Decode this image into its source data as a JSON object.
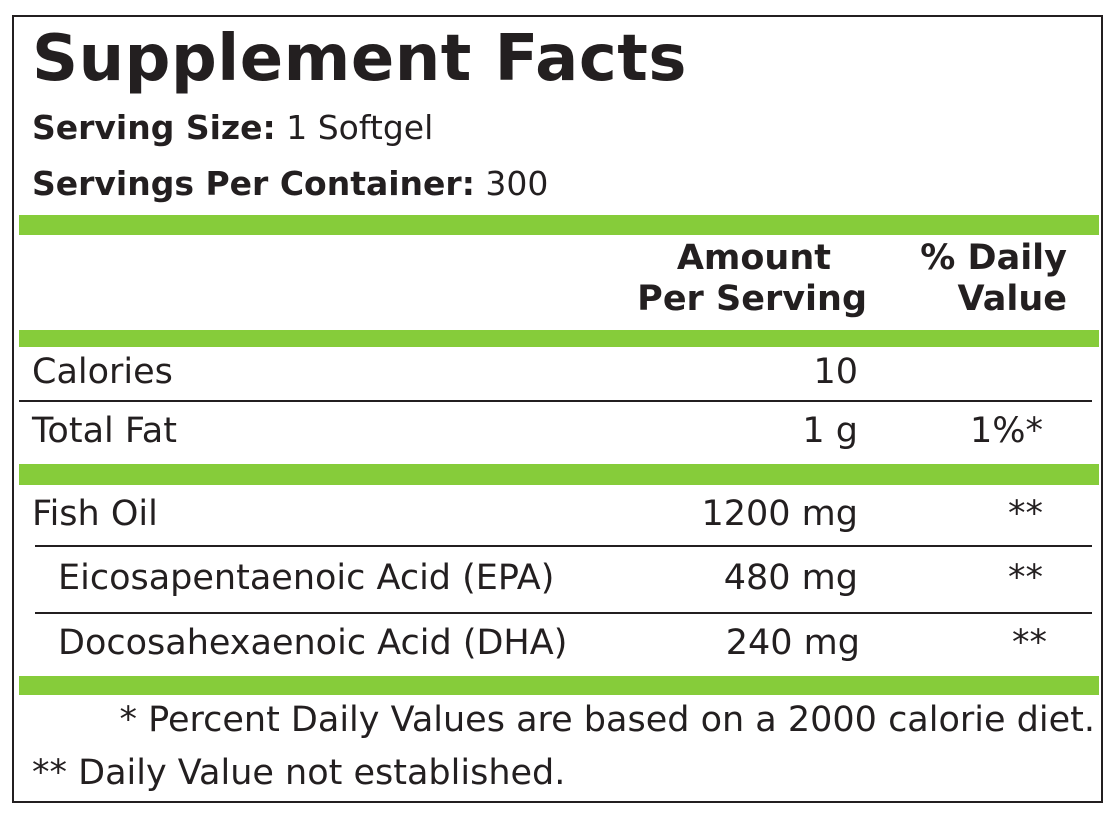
{
  "label": {
    "title": "Supplement Facts",
    "serving_size_label": "Serving Size:",
    "serving_size_value": "1 Softgel",
    "servings_per_container_label": "Servings Per Container:",
    "servings_per_container_value": "300",
    "accent_color": "#86cc3a"
  },
  "header": {
    "amount_line1": "Amount",
    "amount_line2": "Per Serving",
    "dv_line1": "% Daily",
    "dv_line2": "Value"
  },
  "rows": [
    {
      "name": "Calories",
      "amount": "10",
      "dv": ""
    },
    {
      "name": "Total Fat",
      "amount": "1 g",
      "dv": "1%*"
    },
    {
      "name": "Fish Oil",
      "amount": "1200 mg",
      "dv": "**"
    },
    {
      "name": "Eicosapentaenoic Acid (EPA)",
      "amount": "480 mg",
      "dv": "**"
    },
    {
      "name": "Docosahexaenoic Acid (DHA)",
      "amount": "240 mg",
      "dv": "**"
    }
  ],
  "footnotes": [
    "* Percent Daily Values are based on a 2000 calorie diet.",
    "** Daily Value not established."
  ]
}
